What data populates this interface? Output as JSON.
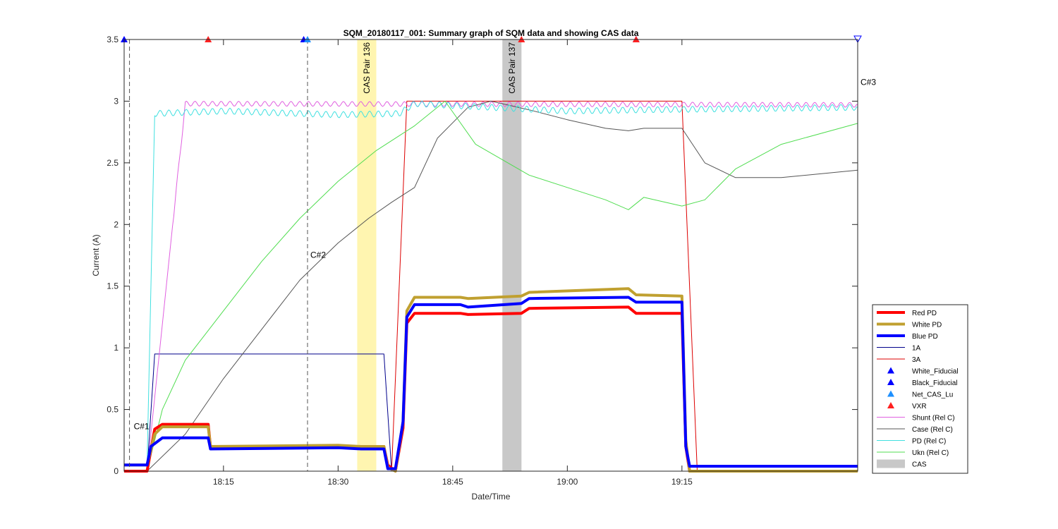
{
  "chart_data": {
    "type": "line",
    "title": "SQM_20180117_001: Summary graph of SQM data and showing CAS data",
    "xlabel": "Date/Time",
    "ylabel": "Current (A)",
    "x_unit": "time of day (HH:MM)",
    "xlim": [
      "18:02",
      "19:38"
    ],
    "ylim": [
      0,
      3.5
    ],
    "x_ticks": [
      "18:15",
      "18:30",
      "18:45",
      "19:00",
      "19:15"
    ],
    "y_ticks": [
      "0",
      "0.5",
      "1",
      "1.5",
      "2",
      "2.5",
      "3",
      "3.5"
    ],
    "grid": false,
    "legend_position": "outside-right-bottom",
    "series": [
      {
        "name": "Red PD",
        "color": "#ff0000",
        "width": 4,
        "points": [
          [
            "18:02",
            0
          ],
          [
            "18:05",
            0
          ],
          [
            "18:06",
            0.34
          ],
          [
            "18:07",
            0.38
          ],
          [
            "18:13",
            0.38
          ],
          [
            "18:13.3",
            0.2
          ],
          [
            "18:30",
            0.2
          ],
          [
            "18:33",
            0.2
          ],
          [
            "18:36",
            0.2
          ],
          [
            "18:36.5",
            0.05
          ],
          [
            "18:37.5",
            0
          ],
          [
            "18:38.5",
            0.35
          ],
          [
            "18:39",
            1.2
          ],
          [
            "18:40",
            1.28
          ],
          [
            "18:46",
            1.28
          ],
          [
            "18:47",
            1.27
          ],
          [
            "18:54",
            1.28
          ],
          [
            "18:55",
            1.32
          ],
          [
            "19:08",
            1.33
          ],
          [
            "19:09",
            1.28
          ],
          [
            "19:15",
            1.28
          ],
          [
            "19:15.5",
            0.2
          ],
          [
            "19:16",
            0
          ],
          [
            "19:38",
            0
          ]
        ]
      },
      {
        "name": "White PD",
        "color": "#c0a030",
        "width": 4,
        "points": [
          [
            "18:02",
            0.05
          ],
          [
            "18:05",
            0.05
          ],
          [
            "18:06",
            0.3
          ],
          [
            "18:07",
            0.36
          ],
          [
            "18:13",
            0.36
          ],
          [
            "18:13.3",
            0.2
          ],
          [
            "18:30",
            0.21
          ],
          [
            "18:33",
            0.2
          ],
          [
            "18:36",
            0.2
          ],
          [
            "18:36.5",
            0.03
          ],
          [
            "18:37.5",
            0
          ],
          [
            "18:38.5",
            0.4
          ],
          [
            "18:39",
            1.3
          ],
          [
            "18:40",
            1.41
          ],
          [
            "18:46",
            1.41
          ],
          [
            "18:47",
            1.4
          ],
          [
            "18:54",
            1.42
          ],
          [
            "18:55",
            1.45
          ],
          [
            "19:08",
            1.48
          ],
          [
            "19:09",
            1.43
          ],
          [
            "19:15",
            1.42
          ],
          [
            "19:15.5",
            0.25
          ],
          [
            "19:16",
            0
          ],
          [
            "19:38",
            0
          ]
        ]
      },
      {
        "name": "Blue PD",
        "color": "#0000ff",
        "width": 4,
        "points": [
          [
            "18:02",
            0.05
          ],
          [
            "18:05",
            0.05
          ],
          [
            "18:05.5",
            0.2
          ],
          [
            "18:07",
            0.27
          ],
          [
            "18:13",
            0.27
          ],
          [
            "18:13.3",
            0.18
          ],
          [
            "18:30",
            0.19
          ],
          [
            "18:33",
            0.18
          ],
          [
            "18:36",
            0.18
          ],
          [
            "18:36.5",
            0.02
          ],
          [
            "18:37.5",
            0.02
          ],
          [
            "18:38.5",
            0.4
          ],
          [
            "18:39",
            1.25
          ],
          [
            "18:40",
            1.35
          ],
          [
            "18:46",
            1.35
          ],
          [
            "18:47",
            1.33
          ],
          [
            "18:54",
            1.36
          ],
          [
            "18:55",
            1.4
          ],
          [
            "19:08",
            1.41
          ],
          [
            "19:09",
            1.37
          ],
          [
            "19:15",
            1.37
          ],
          [
            "19:15.5",
            0.2
          ],
          [
            "19:16",
            0.04
          ],
          [
            "19:38",
            0.04
          ]
        ]
      },
      {
        "name": "1A",
        "color": "#00008b",
        "width": 1,
        "points": [
          [
            "18:02",
            0
          ],
          [
            "18:05",
            0
          ],
          [
            "18:06",
            0.95
          ],
          [
            "18:36",
            0.95
          ],
          [
            "18:37",
            0
          ],
          [
            "19:38",
            0
          ]
        ]
      },
      {
        "name": "3A",
        "color": "#dd0000",
        "width": 1,
        "points": [
          [
            "18:02",
            0
          ],
          [
            "18:37",
            0
          ],
          [
            "18:39",
            3.0
          ],
          [
            "19:15",
            3.0
          ],
          [
            "19:17",
            0
          ],
          [
            "19:38",
            0
          ]
        ]
      },
      {
        "name": "Shunt (Rel C)",
        "color": "#e060e0",
        "width": 1,
        "wave": 0.02,
        "points": [
          [
            "18:02",
            0
          ],
          [
            "18:05",
            0
          ],
          [
            "18:10",
            2.98
          ],
          [
            "19:38",
            2.97
          ]
        ]
      },
      {
        "name": "Case (Rel C)",
        "color": "#555555",
        "width": 1,
        "points": [
          [
            "18:05",
            0
          ],
          [
            "18:10",
            0.3
          ],
          [
            "18:15",
            0.75
          ],
          [
            "18:20",
            1.15
          ],
          [
            "18:25",
            1.55
          ],
          [
            "18:30",
            1.85
          ],
          [
            "18:34",
            2.05
          ],
          [
            "18:37",
            2.18
          ],
          [
            "18:40",
            2.3
          ],
          [
            "18:43",
            2.7
          ],
          [
            "18:47",
            2.95
          ],
          [
            "18:50",
            3.0
          ],
          [
            "18:55",
            2.93
          ],
          [
            "19:00",
            2.85
          ],
          [
            "19:05",
            2.78
          ],
          [
            "19:08",
            2.76
          ],
          [
            "19:10",
            2.78
          ],
          [
            "19:15",
            2.78
          ],
          [
            "19:18",
            2.5
          ],
          [
            "19:22",
            2.38
          ],
          [
            "19:28",
            2.38
          ],
          [
            "19:38",
            2.44
          ]
        ]
      },
      {
        "name": "PD (Rel C)",
        "color": "#40e0e0",
        "width": 1,
        "wave": 0.025,
        "points": [
          [
            "18:02",
            0.05
          ],
          [
            "18:05",
            0.05
          ],
          [
            "18:06",
            2.9
          ],
          [
            "18:15",
            2.92
          ],
          [
            "18:30",
            2.89
          ],
          [
            "18:38",
            2.9
          ],
          [
            "18:40",
            2.98
          ],
          [
            "18:50",
            2.95
          ],
          [
            "19:00",
            2.92
          ],
          [
            "19:10",
            2.93
          ],
          [
            "19:38",
            2.95
          ]
        ]
      },
      {
        "name": "Ukn (Rel C)",
        "color": "#50dd50",
        "width": 1,
        "points": [
          [
            "18:05",
            0
          ],
          [
            "18:07",
            0.5
          ],
          [
            "18:10",
            0.9
          ],
          [
            "18:15",
            1.3
          ],
          [
            "18:20",
            1.7
          ],
          [
            "18:25",
            2.05
          ],
          [
            "18:30",
            2.35
          ],
          [
            "18:35",
            2.6
          ],
          [
            "18:40",
            2.8
          ],
          [
            "18:44",
            3.0
          ],
          [
            "18:48",
            2.65
          ],
          [
            "18:55",
            2.4
          ],
          [
            "19:00",
            2.3
          ],
          [
            "19:05",
            2.2
          ],
          [
            "19:08",
            2.12
          ],
          [
            "19:10",
            2.22
          ],
          [
            "19:15",
            2.15
          ],
          [
            "19:18",
            2.2
          ],
          [
            "19:22",
            2.45
          ],
          [
            "19:28",
            2.65
          ],
          [
            "19:38",
            2.82
          ]
        ]
      }
    ],
    "markers": [
      {
        "name": "White_Fiducial",
        "color": "#0000ff",
        "shape": "triangle-up",
        "x": [
          "18:02"
        ],
        "y": 3.5
      },
      {
        "name": "Black_Fiducial",
        "color": "#0000ff",
        "shape": "triangle-up",
        "x": [
          "18:25.5",
          "19:09"
        ],
        "y": 3.5
      },
      {
        "name": "Net_CAS_Lu",
        "color": "#1e90ff",
        "shape": "triangle-up",
        "x": [
          "18:26"
        ],
        "y": 3.5
      },
      {
        "name": "VXR",
        "color": "#ff2020",
        "shape": "triangle-up",
        "x": [
          "18:13",
          "18:54",
          "19:09"
        ],
        "y": 3.5
      },
      {
        "name": "",
        "color": "#0000ff",
        "shape": "triangle-down",
        "x": [
          "19:38"
        ],
        "y": 3.5
      }
    ],
    "cas_regions": [
      {
        "label": "CAS Pair 136",
        "start": "18:32.5",
        "end": "18:35",
        "color": "#fff5b0"
      },
      {
        "label": "CAS Pair 137",
        "start": "18:51.5",
        "end": "18:54",
        "color": "#c8c8c8"
      }
    ],
    "vlines": [
      {
        "x": "18:02.7",
        "label": "C#1",
        "label_y": 0.34
      },
      {
        "x": "18:26",
        "label": "C#2",
        "label_y": 1.73
      },
      {
        "x": "19:38",
        "label": "C#3",
        "label_y": 3.13
      }
    ],
    "legend": [
      {
        "label": "Red PD",
        "kind": "line",
        "color": "#ff0000",
        "width": 4
      },
      {
        "label": "White PD",
        "kind": "line",
        "color": "#c0a030",
        "width": 4
      },
      {
        "label": "Blue PD",
        "kind": "line",
        "color": "#0000ff",
        "width": 4
      },
      {
        "label": "1A",
        "kind": "line",
        "color": "#00008b",
        "width": 1
      },
      {
        "label": "3A",
        "kind": "line",
        "color": "#dd0000",
        "width": 1
      },
      {
        "label": "White_Fiducial",
        "kind": "marker",
        "color": "#0000ff"
      },
      {
        "label": "Black_Fiducial",
        "kind": "marker",
        "color": "#0000ff"
      },
      {
        "label": "Net_CAS_Lu",
        "kind": "marker",
        "color": "#1e90ff"
      },
      {
        "label": "VXR",
        "kind": "marker",
        "color": "#ff2020"
      },
      {
        "label": "Shunt (Rel C)",
        "kind": "line",
        "color": "#e060e0",
        "width": 1
      },
      {
        "label": "Case (Rel C)",
        "kind": "line",
        "color": "#555555",
        "width": 1
      },
      {
        "label": "PD (Rel C)",
        "kind": "line",
        "color": "#40e0e0",
        "width": 1
      },
      {
        "label": "Ukn (Rel C)",
        "kind": "line",
        "color": "#50dd50",
        "width": 1
      },
      {
        "label": "CAS",
        "kind": "patch",
        "color": "#c8c8c8"
      }
    ]
  }
}
